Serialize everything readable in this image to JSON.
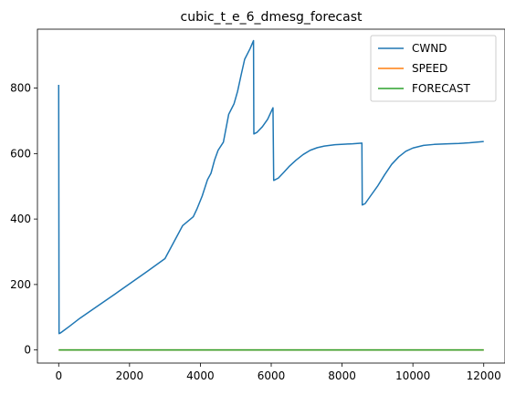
{
  "chart_data": {
    "type": "line",
    "title": "cubic_t_e_6_dmesg_forecast",
    "xlabel": "",
    "ylabel": "",
    "xlim": [
      -600,
      12600
    ],
    "ylim": [
      -40,
      980
    ],
    "x_ticks": [
      0,
      2000,
      4000,
      6000,
      8000,
      10000,
      12000
    ],
    "y_ticks": [
      0,
      200,
      400,
      600,
      800
    ],
    "grid": false,
    "legend_position": "top-right",
    "series": [
      {
        "name": "CWND",
        "color": "#1f77b4",
        "points": [
          [
            0,
            810
          ],
          [
            10,
            50
          ],
          [
            50,
            52
          ],
          [
            150,
            60
          ],
          [
            300,
            72
          ],
          [
            600,
            97
          ],
          [
            1000,
            127
          ],
          [
            1500,
            164
          ],
          [
            2000,
            202
          ],
          [
            2500,
            240
          ],
          [
            3000,
            279
          ],
          [
            3500,
            380
          ],
          [
            3800,
            407
          ],
          [
            3900,
            430
          ],
          [
            4050,
            470
          ],
          [
            4200,
            520
          ],
          [
            4300,
            540
          ],
          [
            4400,
            580
          ],
          [
            4500,
            610
          ],
          [
            4650,
            635
          ],
          [
            4800,
            720
          ],
          [
            4950,
            752
          ],
          [
            5050,
            790
          ],
          [
            5150,
            840
          ],
          [
            5250,
            888
          ],
          [
            5400,
            920
          ],
          [
            5500,
            945
          ],
          [
            5510,
            660
          ],
          [
            5600,
            665
          ],
          [
            5750,
            682
          ],
          [
            5900,
            705
          ],
          [
            6050,
            740
          ],
          [
            6070,
            518
          ],
          [
            6200,
            525
          ],
          [
            6350,
            542
          ],
          [
            6500,
            560
          ],
          [
            6700,
            580
          ],
          [
            6900,
            597
          ],
          [
            7100,
            610
          ],
          [
            7300,
            618
          ],
          [
            7500,
            623
          ],
          [
            7800,
            627
          ],
          [
            8100,
            629
          ],
          [
            8300,
            630
          ],
          [
            8560,
            632
          ],
          [
            8570,
            443
          ],
          [
            8650,
            447
          ],
          [
            8800,
            470
          ],
          [
            9000,
            500
          ],
          [
            9200,
            535
          ],
          [
            9400,
            567
          ],
          [
            9600,
            590
          ],
          [
            9800,
            607
          ],
          [
            10000,
            617
          ],
          [
            10300,
            625
          ],
          [
            10600,
            628
          ],
          [
            11000,
            630
          ],
          [
            11300,
            631
          ],
          [
            11600,
            633
          ],
          [
            12000,
            637
          ]
        ]
      },
      {
        "name": "SPEED",
        "color": "#ff7f0e",
        "points": [
          [
            0,
            0
          ],
          [
            12000,
            0
          ]
        ]
      },
      {
        "name": "FORECAST",
        "color": "#2ca02c",
        "points": [
          [
            0,
            0
          ],
          [
            12000,
            0
          ]
        ]
      }
    ]
  }
}
